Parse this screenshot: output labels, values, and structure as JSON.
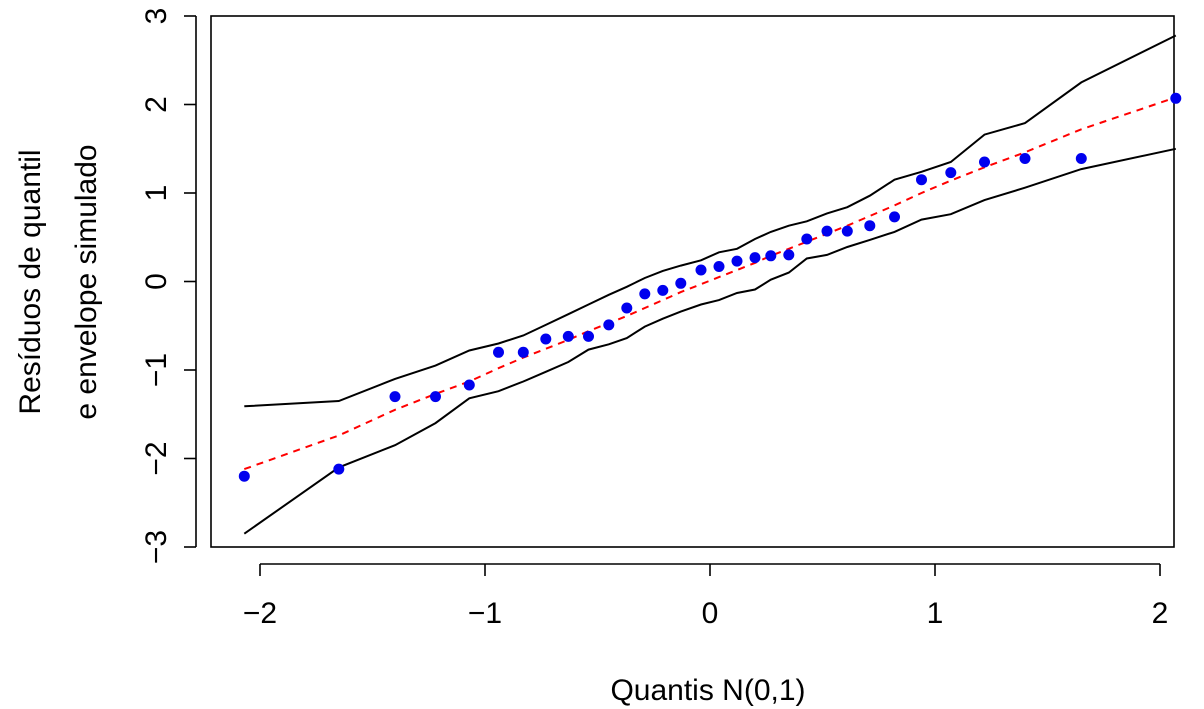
{
  "chart_data": {
    "type": "scatter",
    "title": "",
    "xlabel": "Quantis N(0,1)",
    "ylabel_lines": [
      "Resíduos de quantil",
      "e envelope simulado"
    ],
    "xlim": [
      -2.2,
      2.1
    ],
    "ylim": [
      -3.1,
      3.0
    ],
    "x_ticks": [
      {
        "value": -2,
        "label": "−2"
      },
      {
        "value": -1,
        "label": "−1"
      },
      {
        "value": 0,
        "label": "0"
      },
      {
        "value": 1,
        "label": "1"
      },
      {
        "value": 2,
        "label": "2"
      }
    ],
    "y_ticks": [
      {
        "value": -3,
        "label": "−3"
      },
      {
        "value": -2,
        "label": "−2"
      },
      {
        "value": -1,
        "label": "−1"
      },
      {
        "value": 0,
        "label": "0"
      },
      {
        "value": 1,
        "label": "1"
      },
      {
        "value": 2,
        "label": "2"
      },
      {
        "value": 3,
        "label": "3"
      }
    ],
    "points": {
      "color": "#0000ee",
      "x": [
        -2.07,
        -1.65,
        -1.4,
        -1.22,
        -1.07,
        -0.94,
        -0.83,
        -0.73,
        -0.63,
        -0.54,
        -0.45,
        -0.37,
        -0.29,
        -0.21,
        -0.13,
        -0.04,
        0.04,
        0.12,
        0.2,
        0.27,
        0.35,
        0.43,
        0.52,
        0.61,
        0.71,
        0.82,
        0.94,
        1.07,
        1.22,
        1.4,
        1.65,
        2.07
      ],
      "y": [
        -2.2,
        -2.12,
        -1.3,
        -1.3,
        -1.17,
        -0.8,
        -0.8,
        -0.65,
        -0.62,
        -0.62,
        -0.49,
        -0.3,
        -0.14,
        -0.1,
        -0.02,
        0.13,
        0.17,
        0.23,
        0.27,
        0.29,
        0.3,
        0.48,
        0.57,
        0.57,
        0.63,
        0.73,
        1.15,
        1.23,
        1.35,
        1.39,
        1.39,
        2.07
      ]
    },
    "reference_line": {
      "color": "#ff0000",
      "style": "dashed",
      "x": [
        -2.07,
        -1.65,
        -1.4,
        -1.22,
        -1.07,
        -0.94,
        -0.83,
        -0.73,
        -0.63,
        -0.54,
        -0.45,
        -0.37,
        -0.29,
        -0.21,
        -0.13,
        -0.04,
        0.04,
        0.12,
        0.2,
        0.27,
        0.35,
        0.43,
        0.52,
        0.61,
        0.71,
        0.82,
        0.94,
        1.07,
        1.22,
        1.4,
        1.65,
        2.07
      ],
      "y": [
        -2.12,
        -1.74,
        -1.45,
        -1.27,
        -1.13,
        -0.98,
        -0.86,
        -0.76,
        -0.66,
        -0.56,
        -0.47,
        -0.39,
        -0.3,
        -0.21,
        -0.12,
        -0.03,
        0.05,
        0.13,
        0.21,
        0.29,
        0.37,
        0.45,
        0.54,
        0.63,
        0.74,
        0.86,
        1.0,
        1.14,
        1.29,
        1.46,
        1.72,
        2.08
      ]
    },
    "envelope": {
      "color": "#000000",
      "x": [
        -2.07,
        -1.65,
        -1.4,
        -1.22,
        -1.07,
        -0.94,
        -0.83,
        -0.73,
        -0.63,
        -0.54,
        -0.45,
        -0.37,
        -0.29,
        -0.21,
        -0.13,
        -0.04,
        0.04,
        0.12,
        0.2,
        0.27,
        0.35,
        0.43,
        0.52,
        0.61,
        0.71,
        0.82,
        0.94,
        1.07,
        1.22,
        1.4,
        1.65,
        2.07
      ],
      "lower": [
        -2.85,
        -2.1,
        -1.85,
        -1.6,
        -1.32,
        -1.24,
        -1.13,
        -1.02,
        -0.91,
        -0.77,
        -0.71,
        -0.64,
        -0.51,
        -0.42,
        -0.34,
        -0.26,
        -0.21,
        -0.13,
        -0.09,
        0.02,
        0.1,
        0.26,
        0.3,
        0.39,
        0.47,
        0.56,
        0.7,
        0.76,
        0.92,
        1.06,
        1.27,
        1.5
      ],
      "upper": [
        -1.41,
        -1.35,
        -1.1,
        -0.95,
        -0.78,
        -0.7,
        -0.61,
        -0.49,
        -0.37,
        -0.26,
        -0.15,
        -0.06,
        0.04,
        0.12,
        0.18,
        0.24,
        0.33,
        0.37,
        0.48,
        0.56,
        0.63,
        0.68,
        0.77,
        0.84,
        0.97,
        1.15,
        1.24,
        1.35,
        1.66,
        1.79,
        2.25,
        2.78
      ]
    }
  }
}
